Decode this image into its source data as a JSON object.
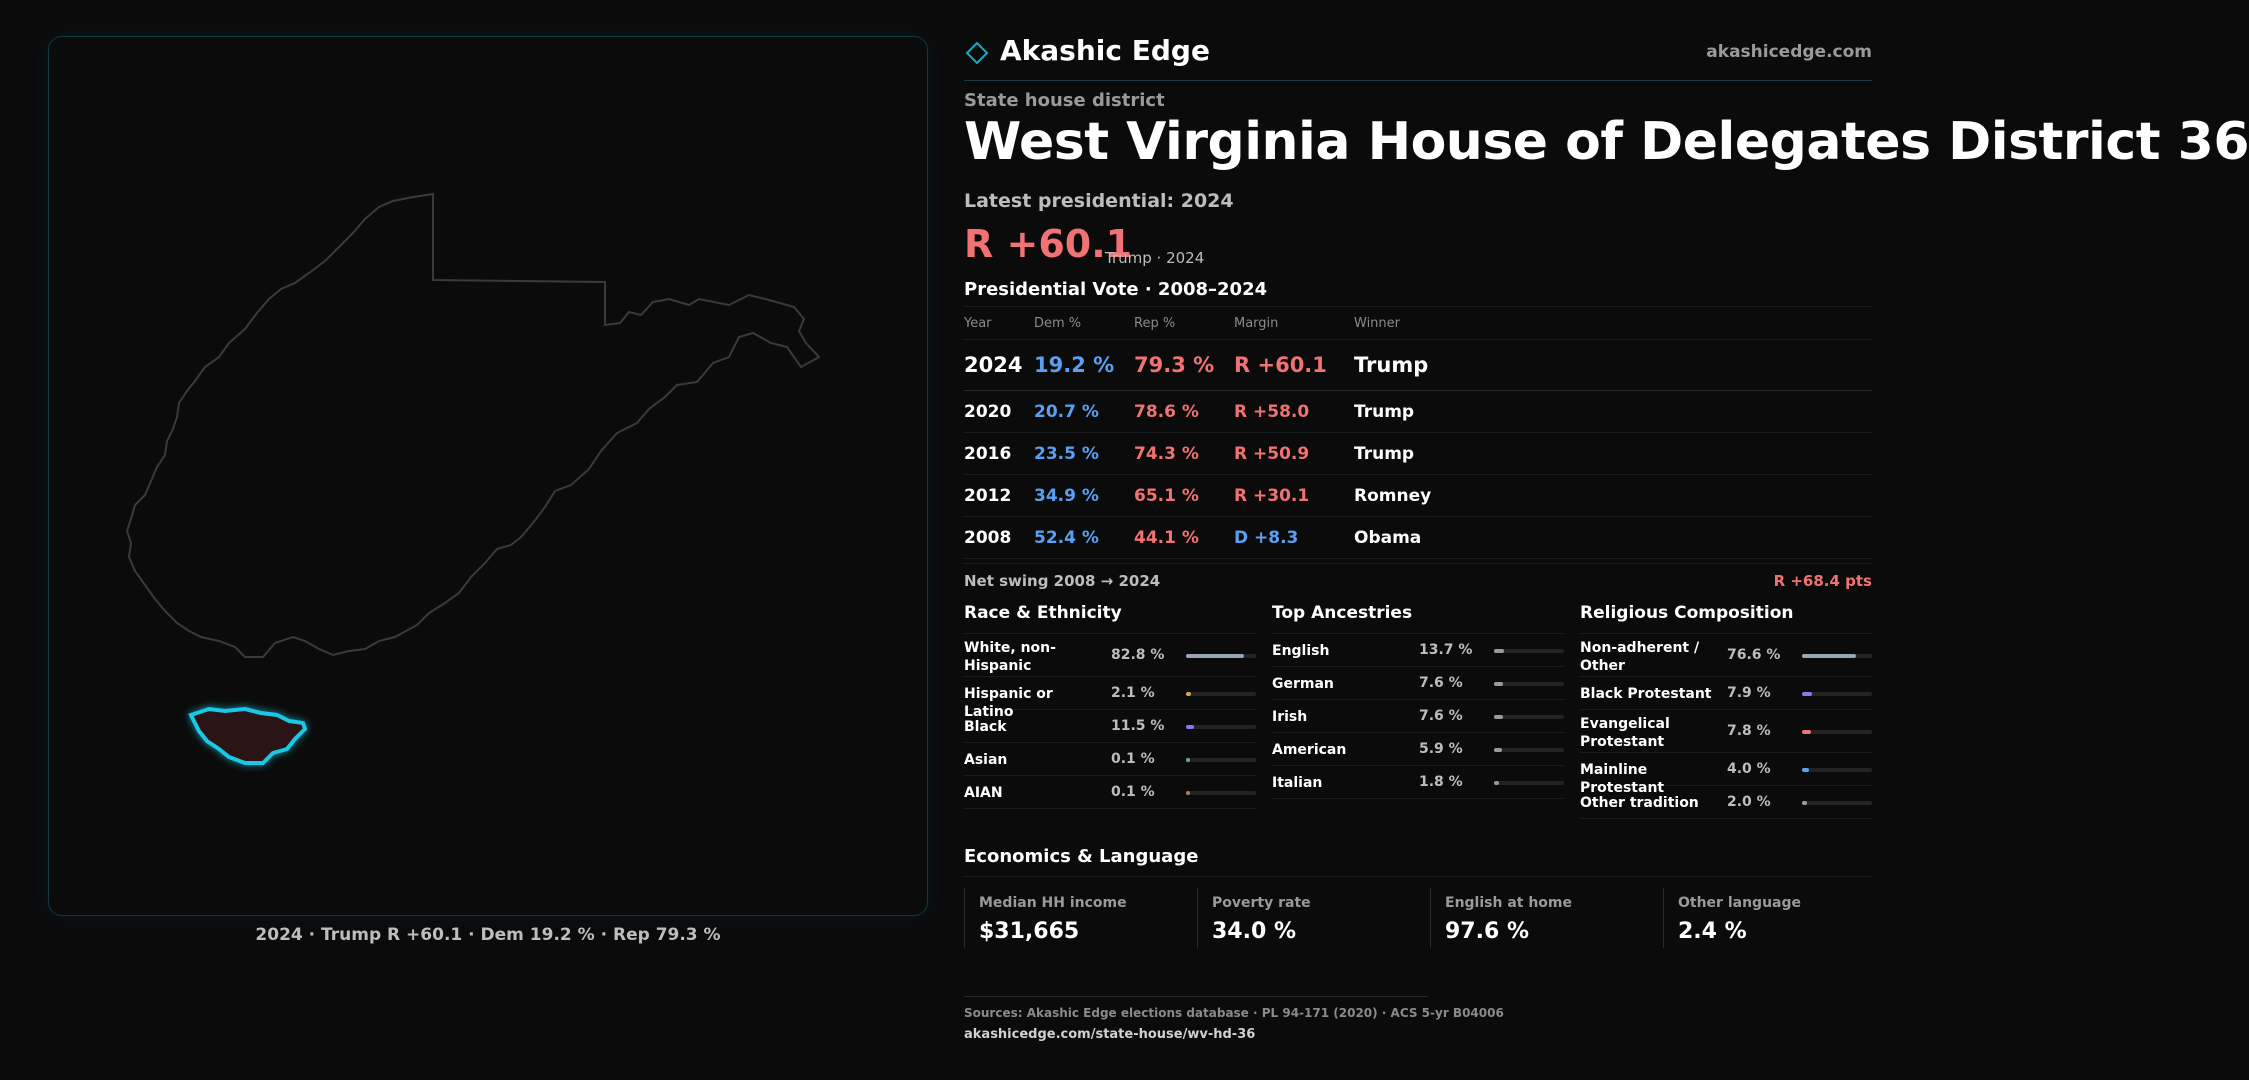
{
  "brand": {
    "name": "Akashic Edge",
    "url": "akashicedge.com",
    "icon": "diamond-icon",
    "accent": "#1aa8c0"
  },
  "header": {
    "kicker": "State house district",
    "title": "West Virginia House of Delegates District 36",
    "latest": "Latest presidential: 2024",
    "big_margin": "R +60.1",
    "big_sub": "Trump · 2024"
  },
  "map": {
    "caption": "2024 · Trump R +60.1 · Dem 19.2 % · Rep 79.3 %",
    "outline_color": "#3a3a3a",
    "district_color": "#1ac8e6",
    "district_fill": "#2a1416"
  },
  "vote": {
    "title": "Presidential Vote · 2008–2024",
    "headers": [
      "Year",
      "Dem %",
      "Rep %",
      "Margin",
      "Winner"
    ],
    "rows": [
      {
        "year": "2024",
        "dem": "19.2 %",
        "rep": "79.3 %",
        "margin": "R +60.1",
        "party": "R",
        "winner": "Trump"
      },
      {
        "year": "2020",
        "dem": "20.7 %",
        "rep": "78.6 %",
        "margin": "R +58.0",
        "party": "R",
        "winner": "Trump"
      },
      {
        "year": "2016",
        "dem": "23.5 %",
        "rep": "74.3 %",
        "margin": "R +50.9",
        "party": "R",
        "winner": "Trump"
      },
      {
        "year": "2012",
        "dem": "34.9 %",
        "rep": "65.1 %",
        "margin": "R +30.1",
        "party": "R",
        "winner": "Romney"
      },
      {
        "year": "2008",
        "dem": "52.4 %",
        "rep": "44.1 %",
        "margin": "D +8.3",
        "party": "D",
        "winner": "Obama"
      }
    ]
  },
  "swing": {
    "label": "Net swing 2008 → 2024",
    "value": "R +68.4 pts"
  },
  "race": {
    "title": "Race & Ethnicity",
    "rows": [
      {
        "label": "White, non-Hispanic",
        "value": "82.8 %",
        "fraction": 0.828,
        "color": "#9aa4b8"
      },
      {
        "label": "Hispanic or Latino",
        "value": "2.1 %",
        "fraction": 0.021,
        "color": "#d6a84a"
      },
      {
        "label": "Black",
        "value": "11.5 %",
        "fraction": 0.115,
        "color": "#8a7af0"
      },
      {
        "label": "Asian",
        "value": "0.1 %",
        "fraction": 0.001,
        "color": "#5ab0a0"
      },
      {
        "label": "AIAN",
        "value": "0.1 %",
        "fraction": 0.001,
        "color": "#b07a5a"
      }
    ]
  },
  "ancestry": {
    "title": "Top Ancestries",
    "rows": [
      {
        "label": "English",
        "value": "13.7 %",
        "fraction": 0.137,
        "color": "#9a9a9a"
      },
      {
        "label": "German",
        "value": "7.6 %",
        "fraction": 0.076,
        "color": "#9a9a9a"
      },
      {
        "label": "Irish",
        "value": "7.6 %",
        "fraction": 0.076,
        "color": "#9a9a9a"
      },
      {
        "label": "American",
        "value": "5.9 %",
        "fraction": 0.059,
        "color": "#9a9a9a"
      },
      {
        "label": "Italian",
        "value": "1.8 %",
        "fraction": 0.018,
        "color": "#9a9a9a"
      }
    ]
  },
  "religion": {
    "title": "Religious Composition",
    "rows": [
      {
        "label": "Non-adherent / Other",
        "value": "76.6 %",
        "fraction": 0.766,
        "color": "#9aa4b8"
      },
      {
        "label": "Black Protestant",
        "value": "7.9 %",
        "fraction": 0.079,
        "color": "#8a7af0"
      },
      {
        "label": "Evangelical Protestant",
        "value": "7.8 %",
        "fraction": 0.078,
        "color": "#f07272"
      },
      {
        "label": "Mainline Protestant",
        "value": "4.0 %",
        "fraction": 0.04,
        "color": "#5aa0f2"
      },
      {
        "label": "Other tradition",
        "value": "2.0 %",
        "fraction": 0.02,
        "color": "#9a9a9a"
      }
    ]
  },
  "econ": {
    "title": "Economics & Language",
    "cards": [
      {
        "label": "Median HH income",
        "value": "$31,665"
      },
      {
        "label": "Poverty rate",
        "value": "34.0 %"
      },
      {
        "label": "English at home",
        "value": "97.6 %"
      },
      {
        "label": "Other language",
        "value": "2.4 %"
      }
    ]
  },
  "footer": {
    "sources": "Sources: Akashic Edge elections database · PL 94-171 (2020) · ACS 5-yr B04006",
    "url": "akashicedge.com/state-house/wv-hd-36"
  }
}
